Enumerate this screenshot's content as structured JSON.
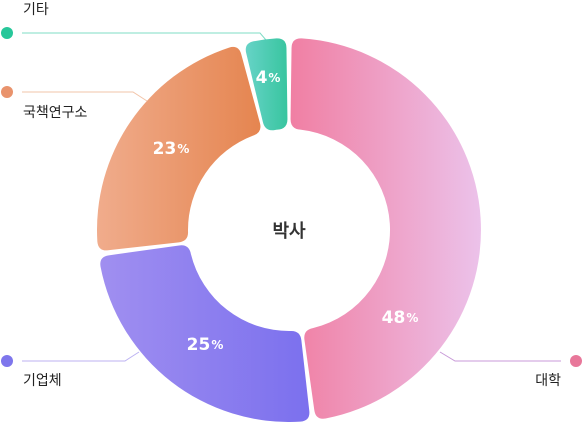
{
  "chart_data": {
    "type": "pie",
    "title": "박사",
    "unit": "%",
    "categories": [
      "대학",
      "기업체",
      "국책연구소",
      "기타"
    ],
    "values": [
      48,
      25,
      23,
      4
    ],
    "colors": [
      {
        "from": "#f07fa3",
        "to": "#ecc2ea",
        "dot": "#e8779a",
        "line": "#c89ad8"
      },
      {
        "from": "#7b70ee",
        "to": "#a08ff0",
        "dot": "#7e76ec",
        "line": "#bcb2f2"
      },
      {
        "from": "#e58550",
        "to": "#f0ac8c",
        "dot": "#e9936c",
        "line": "#f2c4a8"
      },
      {
        "from": "#38c59f",
        "to": "#66d3c7",
        "dot": "#27c79a",
        "line": "#7fdcc6"
      }
    ]
  }
}
